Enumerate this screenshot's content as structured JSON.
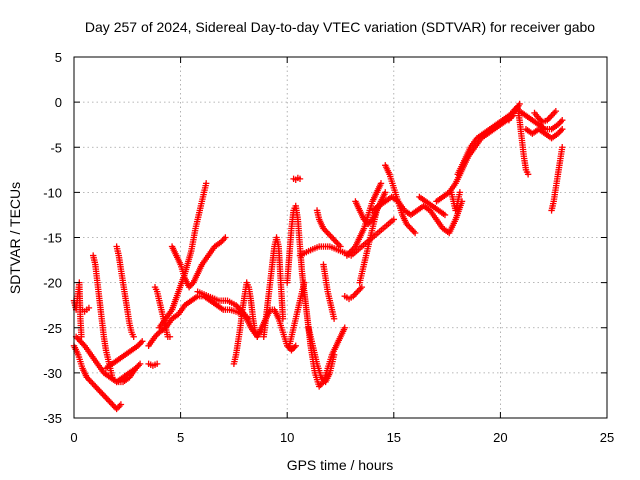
{
  "chart_data": {
    "type": "scatter",
    "title": "Day 257 of 2024, Sidereal Day-to-day VTEC variation (SDTVAR) for receiver gabo",
    "xlabel": "GPS time / hours",
    "ylabel": "SDTVAR / TECUs",
    "xlim": [
      0,
      25
    ],
    "ylim": [
      -35,
      5
    ],
    "xticks": [
      "0",
      "5",
      "10",
      "15",
      "20",
      "25"
    ],
    "yticks": [
      "5",
      "0",
      "-5",
      "-10",
      "-15",
      "-20",
      "-25",
      "-30",
      "-35"
    ],
    "grid": true,
    "marker": "plus",
    "color": "#ff0000",
    "series": [
      {
        "x": [
          0.0,
          0.2,
          0.4,
          0.6,
          0.8,
          1.0,
          1.2,
          1.4,
          1.6,
          1.8,
          2.0,
          2.2
        ],
        "y": [
          -27,
          -28,
          -29.5,
          -30.5,
          -31,
          -31.5,
          -32,
          -32.5,
          -33,
          -33.5,
          -34,
          -33.5
        ]
      },
      {
        "x": [
          0.1,
          0.3,
          0.5,
          0.8,
          1.1,
          1.4,
          1.7,
          2.0,
          2.3,
          2.6,
          2.9
        ],
        "y": [
          -26,
          -26.5,
          -27,
          -28,
          -29,
          -30,
          -30.5,
          -31,
          -31,
          -30.5,
          -29.5
        ]
      },
      {
        "x": [
          0.0,
          0.1,
          0.2,
          0.25,
          0.3,
          0.35
        ],
        "y": [
          -22,
          -23,
          -21,
          -20,
          -24,
          -26
        ]
      },
      {
        "x": [
          0.4,
          0.5,
          0.6,
          0.7
        ],
        "y": [
          -23,
          -23.2,
          -23,
          -22.8
        ]
      },
      {
        "x": [
          0.9,
          1.0,
          1.1,
          1.2,
          1.3,
          1.4,
          1.5,
          1.6,
          1.7,
          1.8
        ],
        "y": [
          -17,
          -18,
          -20,
          -22,
          -24,
          -26,
          -27.5,
          -28.5,
          -29.5,
          -30.5
        ]
      },
      {
        "x": [
          2.0,
          2.1,
          2.2,
          2.3,
          2.4,
          2.5,
          2.6,
          2.7,
          2.8
        ],
        "y": [
          -16,
          -17,
          -18.5,
          -20,
          -21.5,
          -23,
          -24.5,
          -25.5,
          -26
        ]
      },
      {
        "x": [
          1.5,
          1.8,
          2.1,
          2.4,
          2.7,
          3.0,
          3.2
        ],
        "y": [
          -29.5,
          -29,
          -28.5,
          -28,
          -27.5,
          -27,
          -26.5
        ]
      },
      {
        "x": [
          2.0,
          2.3,
          2.6,
          2.9,
          3.1
        ],
        "y": [
          -31,
          -30.5,
          -30,
          -29.5,
          -29
        ]
      },
      {
        "x": [
          3.5,
          3.7,
          3.9
        ],
        "y": [
          -29,
          -29.2,
          -29
        ]
      },
      {
        "x": [
          3.5,
          3.8,
          4.0,
          4.3,
          4.6,
          4.9,
          5.2,
          5.5,
          5.8,
          6.1,
          6.4,
          6.7,
          7.0,
          7.3,
          7.6,
          7.9,
          8.2
        ],
        "y": [
          -27,
          -26,
          -25.5,
          -25,
          -24,
          -23.5,
          -22.5,
          -22,
          -21.5,
          -21.5,
          -22,
          -22.5,
          -23,
          -23,
          -23.2,
          -23.5,
          -24
        ]
      },
      {
        "x": [
          3.8,
          3.9,
          4.0,
          4.1,
          4.2,
          4.3,
          4.4,
          4.5
        ],
        "y": [
          -20.5,
          -21,
          -22,
          -23,
          -24,
          -25,
          -26,
          -26
        ]
      },
      {
        "x": [
          4.0,
          4.3,
          4.6,
          4.9,
          5.2,
          5.5,
          5.7,
          5.9,
          6.1,
          6.2
        ],
        "y": [
          -25,
          -24,
          -23,
          -21,
          -19,
          -16.5,
          -14,
          -12,
          -10,
          -9
        ]
      },
      {
        "x": [
          4.6,
          4.8,
          5.0,
          5.2,
          5.4,
          5.6,
          5.8,
          6.0,
          6.3,
          6.6,
          6.9,
          7.1
        ],
        "y": [
          -16,
          -17,
          -18,
          -19.5,
          -20.5,
          -20,
          -19,
          -18,
          -17,
          -16,
          -15.5,
          -15
        ]
      },
      {
        "x": [
          5.8,
          6.3,
          6.8,
          7.2,
          7.6,
          8.0,
          8.3,
          8.6
        ],
        "y": [
          -21,
          -21.5,
          -22,
          -22,
          -22.5,
          -23.5,
          -25,
          -26
        ]
      },
      {
        "x": [
          7.5,
          7.6,
          7.7,
          7.8,
          7.9,
          8.0,
          8.1,
          8.2,
          8.3,
          8.4,
          8.5
        ],
        "y": [
          -29,
          -28,
          -26.5,
          -25,
          -23,
          -21.5,
          -20,
          -20.5,
          -22,
          -24,
          -25.5
        ]
      },
      {
        "x": [
          8.6,
          8.8,
          9.0,
          9.2,
          9.4,
          9.6,
          9.8,
          10.0,
          10.2,
          10.4
        ],
        "y": [
          -26,
          -25,
          -24,
          -23,
          -23,
          -24,
          -25.5,
          -27,
          -27.5,
          -27
        ]
      },
      {
        "x": [
          8.9,
          9.0,
          9.1,
          9.2,
          9.3,
          9.4,
          9.5,
          9.6,
          9.7,
          9.8
        ],
        "y": [
          -26,
          -24,
          -22,
          -20,
          -18,
          -16,
          -15,
          -16,
          -20,
          -24
        ]
      },
      {
        "x": [
          10.0,
          10.1,
          10.2,
          10.3,
          10.4,
          10.5,
          10.6,
          10.7
        ],
        "y": [
          -20,
          -17,
          -14,
          -12,
          -11.5,
          -13,
          -16,
          -19
        ]
      },
      {
        "x": [
          10.3,
          10.4,
          10.5,
          10.6
        ],
        "y": [
          -8.5,
          -8.6,
          -8.4,
          -8.5
        ]
      },
      {
        "x": [
          10.1,
          10.2,
          10.3,
          10.4,
          10.5,
          10.6,
          10.7,
          10.8
        ],
        "y": [
          -27,
          -26,
          -25,
          -24,
          -23,
          -22,
          -21,
          -20
        ]
      },
      {
        "x": [
          10.7,
          10.9,
          11.1,
          11.3,
          11.5,
          11.7,
          11.9,
          12.1,
          12.3,
          12.5,
          12.7
        ],
        "y": [
          -19,
          -23,
          -27,
          -30,
          -31.5,
          -31,
          -29.5,
          -28,
          -27,
          -26,
          -25
        ]
      },
      {
        "x": [
          11.0,
          11.2,
          11.4,
          11.6,
          11.8,
          12.0,
          12.2
        ],
        "y": [
          -25,
          -27,
          -29,
          -30.5,
          -31,
          -30,
          -28
        ]
      },
      {
        "x": [
          10.6,
          11.0,
          11.5,
          12.0,
          12.5,
          13.0,
          13.5,
          14.0,
          14.5,
          15.0
        ],
        "y": [
          -17,
          -16.5,
          -16,
          -16,
          -16.5,
          -17,
          -16,
          -15,
          -14,
          -13
        ]
      },
      {
        "x": [
          11.4,
          11.5,
          11.7,
          11.9,
          12.1,
          12.3,
          12.5
        ],
        "y": [
          -12,
          -13,
          -14,
          -14.5,
          -15,
          -15.5,
          -16
        ]
      },
      {
        "x": [
          11.7,
          11.8,
          11.9,
          12.0,
          12.1,
          12.2
        ],
        "y": [
          -18,
          -19.5,
          -21,
          -22,
          -23,
          -24
        ]
      },
      {
        "x": [
          12.7,
          12.9,
          13.1,
          13.3,
          13.5
        ],
        "y": [
          -21.5,
          -21.8,
          -21.5,
          -21,
          -20.5
        ]
      },
      {
        "x": [
          12.8,
          13.0,
          13.2,
          13.4,
          13.6,
          13.8,
          14.0,
          14.2,
          14.4
        ],
        "y": [
          -17,
          -16.5,
          -16,
          -15,
          -14,
          -12.5,
          -11,
          -10,
          -9
        ]
      },
      {
        "x": [
          13.2,
          13.4,
          13.6,
          13.8,
          14.0,
          14.2,
          14.4,
          14.6
        ],
        "y": [
          -11,
          -12,
          -13,
          -13.5,
          -13,
          -12,
          -11,
          -10
        ]
      },
      {
        "x": [
          13.4,
          13.6,
          13.8,
          14.0,
          14.2,
          14.4
        ],
        "y": [
          -20,
          -18,
          -16,
          -14,
          -12,
          -11
        ]
      },
      {
        "x": [
          14.0,
          14.3,
          14.6,
          14.9,
          15.2,
          15.5,
          15.8,
          16.1,
          16.4,
          16.7,
          17.0,
          17.3,
          17.6,
          17.9,
          18.2
        ],
        "y": [
          -12,
          -11.5,
          -11,
          -10.5,
          -11,
          -12,
          -12.5,
          -12,
          -11.5,
          -12,
          -13,
          -14,
          -14.5,
          -13,
          -11
        ]
      },
      {
        "x": [
          14.6,
          14.8,
          15.0,
          15.2,
          15.4,
          15.6,
          15.8,
          16.0
        ],
        "y": [
          -7,
          -8,
          -9.5,
          -11,
          -12.5,
          -13.5,
          -14,
          -14.5
        ]
      },
      {
        "x": [
          16.2,
          16.5,
          16.8,
          17.1,
          17.4
        ],
        "y": [
          -10.5,
          -11,
          -11.5,
          -12,
          -12.5
        ]
      },
      {
        "x": [
          17.0,
          17.3,
          17.6,
          17.9,
          18.2,
          18.5,
          18.8,
          19.1,
          19.4,
          19.7,
          20.0,
          20.3,
          20.6
        ],
        "y": [
          -11,
          -10.5,
          -10,
          -9,
          -7.5,
          -6,
          -5,
          -4,
          -3.5,
          -3,
          -2.5,
          -2,
          -1.5
        ]
      },
      {
        "x": [
          17.7,
          17.8,
          17.9,
          18.0,
          18.1
        ],
        "y": [
          -10,
          -11,
          -12,
          -11,
          -10
        ]
      },
      {
        "x": [
          18.0,
          18.3,
          18.6,
          18.9,
          19.2,
          19.5,
          19.8,
          20.1,
          20.4,
          20.7,
          20.9
        ],
        "y": [
          -8,
          -6.5,
          -5,
          -4,
          -3.5,
          -3,
          -2.5,
          -2,
          -1.5,
          -1,
          -0.2
        ]
      },
      {
        "x": [
          20.4,
          20.6,
          20.8,
          20.9,
          21.0,
          21.1,
          21.2,
          21.3
        ],
        "y": [
          -2,
          -1,
          -0.5,
          -2,
          -4,
          -6,
          -7.5,
          -8
        ]
      },
      {
        "x": [
          20.9,
          21.2,
          21.5,
          21.8,
          22.1,
          22.4,
          22.7,
          22.9
        ],
        "y": [
          -1,
          -1.5,
          -2,
          -2.5,
          -3,
          -3,
          -2.5,
          -2
        ]
      },
      {
        "x": [
          21.2,
          21.5,
          21.8,
          22.1,
          22.4,
          22.7,
          22.9
        ],
        "y": [
          -3,
          -3.5,
          -3,
          -3.5,
          -4,
          -3.5,
          -3
        ]
      },
      {
        "x": [
          21.6,
          21.8,
          22.0,
          22.2,
          22.4,
          22.6
        ],
        "y": [
          -1.2,
          -1.8,
          -2.2,
          -2,
          -1.5,
          -1
        ]
      },
      {
        "x": [
          22.4,
          22.5,
          22.6,
          22.7,
          22.8,
          22.9
        ],
        "y": [
          -12,
          -11,
          -9.5,
          -8,
          -6.5,
          -5
        ]
      }
    ]
  }
}
